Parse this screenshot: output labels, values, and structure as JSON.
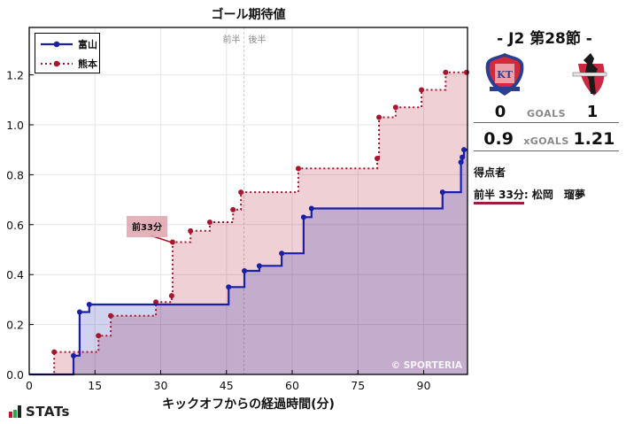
{
  "chart_data": {
    "type": "line",
    "subtype": "step",
    "title": "ゴール期待値",
    "xlabel": "キックオフからの経過時間(分)",
    "ylabel": "",
    "xlim": [
      0,
      100
    ],
    "ylim": [
      0,
      1.39
    ],
    "xticks": [
      0,
      15,
      30,
      45,
      60,
      75,
      90
    ],
    "yticks": [
      0.0,
      0.2,
      0.4,
      0.6,
      0.8,
      1.0,
      1.2
    ],
    "xtick_labels": [
      "0",
      "15",
      "30",
      "45",
      "60",
      "75",
      "90"
    ],
    "ytick_labels": [
      "0.0",
      "0.2",
      "0.4",
      "0.6",
      "0.8",
      "1.0",
      "1.2"
    ],
    "grid": true,
    "legend_position": "upper left",
    "halftime_line": {
      "x": 49,
      "labels": [
        "前半",
        "後半"
      ]
    },
    "series": [
      {
        "name": "富山",
        "color": "#1a1fa8",
        "fill": "#c9c9ea",
        "linestyle": "solid",
        "points": [
          {
            "x": 0,
            "y": 0.0
          },
          {
            "x": 10.1,
            "y": 0.075
          },
          {
            "x": 11.5,
            "y": 0.25
          },
          {
            "x": 13.7,
            "y": 0.28
          },
          {
            "x": 45.5,
            "y": 0.35
          },
          {
            "x": 49.1,
            "y": 0.415
          },
          {
            "x": 52.5,
            "y": 0.435
          },
          {
            "x": 57.6,
            "y": 0.485
          },
          {
            "x": 62.6,
            "y": 0.63
          },
          {
            "x": 64.4,
            "y": 0.665
          },
          {
            "x": 94.3,
            "y": 0.73
          },
          {
            "x": 98.5,
            "y": 0.85
          },
          {
            "x": 98.8,
            "y": 0.87
          },
          {
            "x": 99.2,
            "y": 0.9
          }
        ],
        "end_x": 100
      },
      {
        "name": "熊本",
        "color": "#a8152f",
        "fill": "#e6bcc4",
        "linestyle": "dotted",
        "points": [
          {
            "x": 0,
            "y": 0.0
          },
          {
            "x": 5.7,
            "y": 0.09
          },
          {
            "x": 15.8,
            "y": 0.155
          },
          {
            "x": 18.6,
            "y": 0.235
          },
          {
            "x": 28.9,
            "y": 0.29
          },
          {
            "x": 32.5,
            "y": 0.315
          },
          {
            "x": 32.7,
            "y": 0.53
          },
          {
            "x": 36.8,
            "y": 0.575
          },
          {
            "x": 41.2,
            "y": 0.61
          },
          {
            "x": 46.5,
            "y": 0.66
          },
          {
            "x": 48.3,
            "y": 0.73
          },
          {
            "x": 61.4,
            "y": 0.825
          },
          {
            "x": 79.4,
            "y": 0.865
          },
          {
            "x": 79.8,
            "y": 1.03
          },
          {
            "x": 83.6,
            "y": 1.07
          },
          {
            "x": 89.5,
            "y": 1.14
          },
          {
            "x": 95.0,
            "y": 1.21
          },
          {
            "x": 99.8,
            "y": 1.21
          }
        ],
        "end_x": 100
      }
    ],
    "annotations": [
      {
        "text": "前33分",
        "x": 32.7,
        "y": 0.53,
        "team": "熊本"
      }
    ],
    "watermark": "© SPORTERIA"
  },
  "legend": {
    "items": [
      {
        "label": "富山",
        "color": "#1a1fa8",
        "style": "solid"
      },
      {
        "label": "熊本",
        "color": "#a8152f",
        "style": "dotted"
      }
    ]
  },
  "branding": {
    "stats_logo_text": "STATs",
    "stats_bar_colors": [
      "#c8102e",
      "#2aa84a",
      "#222222"
    ]
  },
  "match": {
    "matchday": "- J2 第28節 -",
    "home": {
      "name": "富山",
      "crest_icon": "toyama-crest-icon",
      "goals": "0",
      "xg": "0.9"
    },
    "away": {
      "name": "熊本",
      "crest_icon": "kumamoto-crest-icon",
      "goals": "1",
      "xg": "1.21"
    },
    "goals_label": "GOALS",
    "xgoals_label": "xGOALS",
    "scorers_title": "得点者",
    "scorers": [
      {
        "time": "前半 33分",
        "name": "松岡　瑠夢"
      }
    ]
  }
}
